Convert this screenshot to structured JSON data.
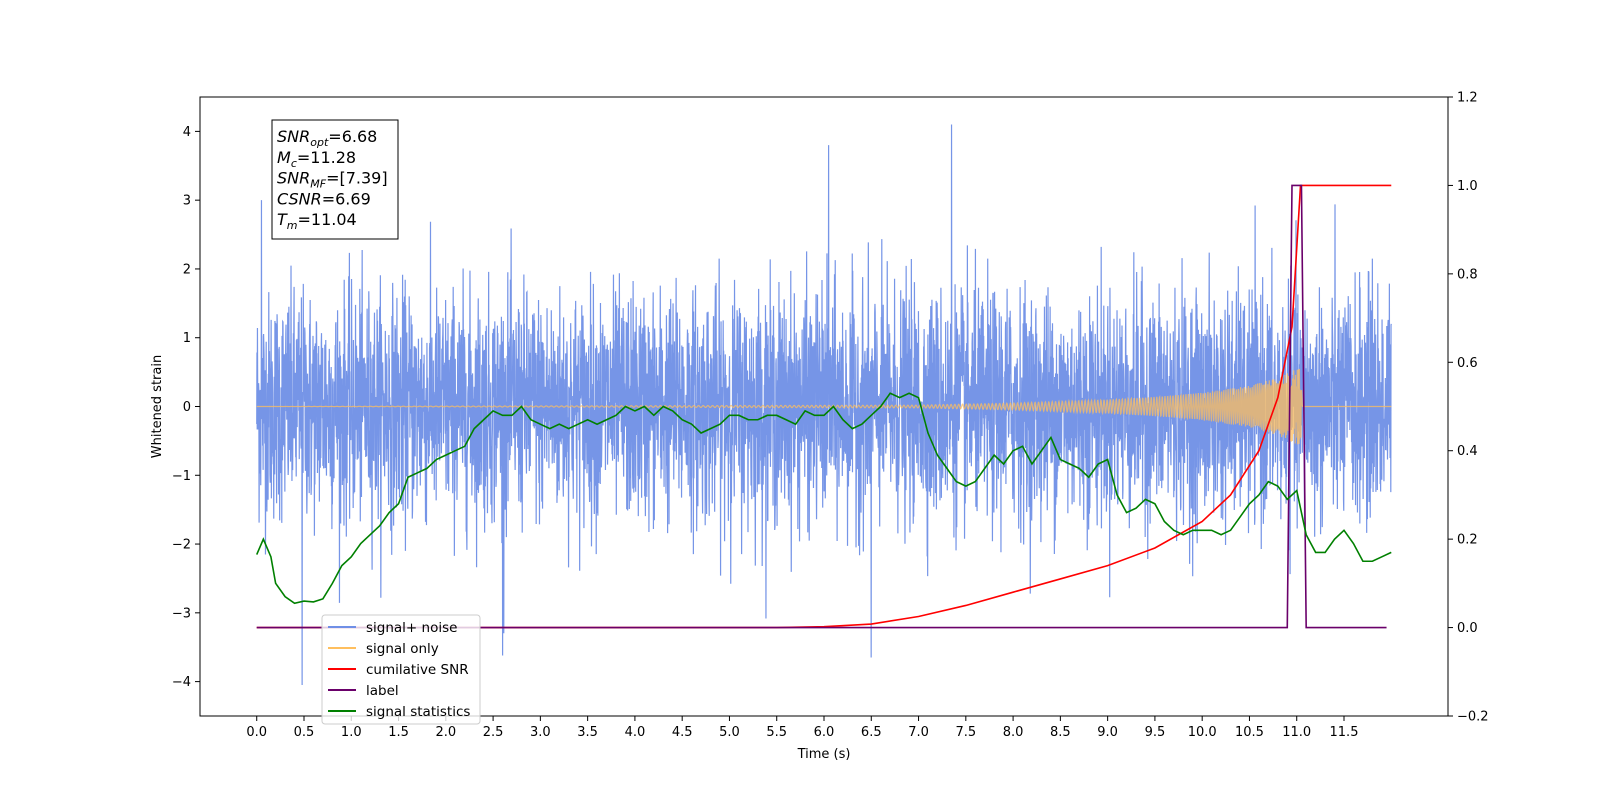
{
  "chart_data": {
    "type": "line",
    "xlabel": "Time (s)",
    "ylabel": "Whitened strain",
    "xlim": [
      -0.6,
      12.6
    ],
    "ylim": [
      -4.5,
      4.5
    ],
    "ylim_right": [
      -0.2,
      1.2
    ],
    "grid": false,
    "legend_placement": "lower-left",
    "x_ticks": [
      "0.0",
      "0.5",
      "1.0",
      "1.5",
      "2.0",
      "2.5",
      "3.0",
      "3.5",
      "4.0",
      "4.5",
      "5.0",
      "5.5",
      "6.0",
      "6.5",
      "7.0",
      "7.5",
      "8.0",
      "8.5",
      "9.0",
      "9.5",
      "10.0",
      "10.5",
      "11.0",
      "11.5"
    ],
    "y_ticks_left": [
      "4",
      "3",
      "2",
      "1",
      "0",
      "−1",
      "−2",
      "−3",
      "−4"
    ],
    "y_ticks_right": [
      "1.2",
      "1.0",
      "0.8",
      "0.6",
      "0.4",
      "0.2",
      "0.0",
      "−0.2"
    ],
    "annotation": {
      "lines": [
        {
          "base": "SNR",
          "sub": "opt",
          "value": "=6.68"
        },
        {
          "base": "M",
          "sub": "c",
          "value": "=11.28"
        },
        {
          "base": "SNR",
          "sub": "MF",
          "value": "=[7.39]"
        },
        {
          "base": "CSNR",
          "sub": "",
          "value": "=6.69"
        },
        {
          "base": "T",
          "sub": "m",
          "value": "=11.04"
        }
      ]
    },
    "legend": [
      {
        "label": "signal+ noise",
        "color": "#6f8fe6"
      },
      {
        "label": "signal only",
        "color": "#ffbf5e"
      },
      {
        "label": "cumilative SNR",
        "color": "#ff0000"
      },
      {
        "label": "label",
        "color": "#6a006a"
      },
      {
        "label": "signal statistics",
        "color": "#008000"
      }
    ],
    "series": [
      {
        "name": "signal+ noise",
        "axis": "left",
        "color": "#6f8fe6",
        "description_type": "noise",
        "x_range": [
          0.0,
          12.0
        ],
        "approx_std": 1.0,
        "peak_points": [
          [
            0.05,
            3.0
          ],
          [
            0.48,
            -4.05
          ],
          [
            2.6,
            -3.62
          ],
          [
            6.05,
            3.8
          ],
          [
            6.5,
            -3.65
          ],
          [
            7.35,
            4.1
          ],
          [
            11.8,
            2.15
          ]
        ]
      },
      {
        "name": "signal only",
        "axis": "left",
        "color": "#ffbf5e",
        "envelope": [
          [
            0.0,
            0.0
          ],
          [
            7.0,
            0.02
          ],
          [
            8.0,
            0.05
          ],
          [
            9.0,
            0.1
          ],
          [
            9.5,
            0.14
          ],
          [
            10.0,
            0.2
          ],
          [
            10.5,
            0.3
          ],
          [
            10.8,
            0.42
          ],
          [
            11.0,
            0.55
          ],
          [
            11.04,
            0.55
          ],
          [
            11.06,
            0.0
          ],
          [
            12.0,
            0.0
          ]
        ]
      },
      {
        "name": "cumilative SNR",
        "axis": "right",
        "color": "#ff0000",
        "x": [
          0.0,
          5.5,
          6.0,
          6.5,
          7.0,
          7.5,
          8.0,
          8.5,
          9.0,
          9.5,
          10.0,
          10.3,
          10.6,
          10.8,
          10.95,
          11.04,
          11.1,
          12.0
        ],
        "values": [
          0.0,
          0.0,
          0.002,
          0.008,
          0.025,
          0.05,
          0.08,
          0.11,
          0.14,
          0.18,
          0.24,
          0.3,
          0.4,
          0.52,
          0.68,
          1.0,
          1.0,
          1.0
        ]
      },
      {
        "name": "label",
        "axis": "right",
        "color": "#6a006a",
        "x": [
          0.0,
          10.9,
          10.95,
          11.05,
          11.1,
          11.95
        ],
        "values": [
          0.0,
          0.0,
          1.0,
          1.0,
          0.0,
          0.0
        ]
      },
      {
        "name": "signal statistics",
        "axis": "right",
        "color": "#008000",
        "x": [
          0.0,
          0.07,
          0.15,
          0.2,
          0.3,
          0.4,
          0.5,
          0.6,
          0.7,
          0.8,
          0.9,
          1.0,
          1.1,
          1.2,
          1.3,
          1.4,
          1.5,
          1.6,
          1.7,
          1.8,
          1.9,
          2.0,
          2.1,
          2.2,
          2.3,
          2.4,
          2.5,
          2.6,
          2.7,
          2.8,
          2.9,
          3.0,
          3.1,
          3.2,
          3.3,
          3.4,
          3.5,
          3.6,
          3.7,
          3.8,
          3.9,
          4.0,
          4.1,
          4.2,
          4.3,
          4.4,
          4.5,
          4.6,
          4.7,
          4.8,
          4.9,
          5.0,
          5.1,
          5.2,
          5.3,
          5.4,
          5.5,
          5.6,
          5.7,
          5.8,
          5.9,
          6.0,
          6.1,
          6.2,
          6.3,
          6.4,
          6.5,
          6.6,
          6.7,
          6.8,
          6.9,
          7.0,
          7.1,
          7.2,
          7.3,
          7.4,
          7.5,
          7.6,
          7.7,
          7.8,
          7.9,
          8.0,
          8.1,
          8.2,
          8.3,
          8.4,
          8.5,
          8.6,
          8.7,
          8.8,
          8.9,
          9.0,
          9.1,
          9.2,
          9.3,
          9.4,
          9.5,
          9.6,
          9.7,
          9.8,
          9.9,
          10.0,
          10.1,
          10.2,
          10.3,
          10.4,
          10.5,
          10.6,
          10.7,
          10.8,
          10.9,
          11.0,
          11.1,
          11.2,
          11.3,
          11.4,
          11.5,
          11.6,
          11.7,
          11.8,
          11.9,
          12.0
        ],
        "values": [
          0.165,
          0.2,
          0.16,
          0.1,
          0.07,
          0.055,
          0.06,
          0.058,
          0.065,
          0.1,
          0.14,
          0.16,
          0.19,
          0.21,
          0.23,
          0.26,
          0.28,
          0.34,
          0.35,
          0.36,
          0.38,
          0.39,
          0.4,
          0.41,
          0.45,
          0.47,
          0.49,
          0.48,
          0.48,
          0.5,
          0.47,
          0.46,
          0.45,
          0.46,
          0.45,
          0.46,
          0.47,
          0.46,
          0.47,
          0.48,
          0.5,
          0.49,
          0.5,
          0.48,
          0.5,
          0.49,
          0.47,
          0.46,
          0.44,
          0.45,
          0.46,
          0.48,
          0.48,
          0.47,
          0.47,
          0.48,
          0.48,
          0.47,
          0.46,
          0.49,
          0.48,
          0.48,
          0.5,
          0.47,
          0.45,
          0.46,
          0.48,
          0.5,
          0.53,
          0.52,
          0.53,
          0.52,
          0.44,
          0.39,
          0.36,
          0.33,
          0.32,
          0.33,
          0.36,
          0.39,
          0.37,
          0.4,
          0.41,
          0.37,
          0.4,
          0.43,
          0.38,
          0.37,
          0.36,
          0.34,
          0.37,
          0.38,
          0.3,
          0.26,
          0.27,
          0.29,
          0.28,
          0.24,
          0.22,
          0.21,
          0.22,
          0.22,
          0.22,
          0.21,
          0.22,
          0.25,
          0.28,
          0.3,
          0.33,
          0.32,
          0.29,
          0.31,
          0.21,
          0.17,
          0.17,
          0.2,
          0.22,
          0.19,
          0.15,
          0.15,
          0.16,
          0.17
        ]
      }
    ]
  }
}
